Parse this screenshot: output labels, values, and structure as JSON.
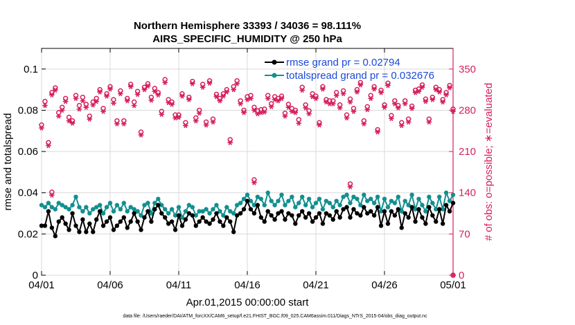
{
  "chart_data": {
    "type": "line",
    "title": "Northern Hemisphere 33393 / 34036 = 98.111%",
    "subtitle": "AIRS_SPECIFIC_HUMIDITY @ 250 hPa",
    "xlabel": "Apr.01,2015 00:00:00 start",
    "ylabel": "rmse and totalspread",
    "y2label": "# of obs: o=possible; ∗=evaluated",
    "footnote": "data file: /Users/raeder/DAI/ATM_forcXX/CAM6_setup/f.e21.FHIST_BGC.f09_025.CAM6assim.011/Diags_NTrS_2015-04/obs_diag_output.nc",
    "xlim": [
      0,
      30
    ],
    "ylim": [
      0,
      0.11
    ],
    "y2lim": [
      0,
      385
    ],
    "x_ticks": [
      0,
      5,
      10,
      15,
      20,
      25,
      30
    ],
    "x_tick_labels": [
      "04/01",
      "04/06",
      "04/11",
      "04/16",
      "04/21",
      "04/26",
      "05/01"
    ],
    "y_ticks": [
      0,
      0.02,
      0.04,
      0.06,
      0.08,
      0.1
    ],
    "y_tick_labels": [
      "0",
      "0.02",
      "0.04",
      "0.06",
      "0.08",
      "0.1"
    ],
    "y2_ticks": [
      0,
      70,
      140,
      210,
      280,
      350
    ],
    "y2_tick_labels": [
      "0",
      "70",
      "140",
      "210",
      "280",
      "350"
    ],
    "legend_position": "top-right",
    "x": [
      0,
      0.25,
      0.5,
      0.75,
      1,
      1.25,
      1.5,
      1.75,
      2,
      2.25,
      2.5,
      2.75,
      3,
      3.25,
      3.5,
      3.75,
      4,
      4.25,
      4.5,
      4.75,
      5,
      5.25,
      5.5,
      5.75,
      6,
      6.25,
      6.5,
      6.75,
      7,
      7.25,
      7.5,
      7.75,
      8,
      8.25,
      8.5,
      8.75,
      9,
      9.25,
      9.5,
      9.75,
      10,
      10.25,
      10.5,
      10.75,
      11,
      11.25,
      11.5,
      11.75,
      12,
      12.25,
      12.5,
      12.75,
      13,
      13.25,
      13.5,
      13.75,
      14,
      14.25,
      14.5,
      14.75,
      15,
      15.25,
      15.5,
      15.75,
      16,
      16.25,
      16.5,
      16.75,
      17,
      17.25,
      17.5,
      17.75,
      18,
      18.25,
      18.5,
      18.75,
      19,
      19.25,
      19.5,
      19.75,
      20,
      20.25,
      20.5,
      20.75,
      21,
      21.25,
      21.5,
      21.75,
      22,
      22.25,
      22.5,
      22.75,
      23,
      23.25,
      23.5,
      23.75,
      24,
      24.25,
      24.5,
      24.75,
      25,
      25.25,
      25.5,
      25.75,
      26,
      26.25,
      26.5,
      26.75,
      27,
      27.25,
      27.5,
      27.75,
      28,
      28.25,
      28.5,
      28.75,
      29,
      29.25,
      29.5,
      29.75,
      30
    ],
    "series": [
      {
        "name": "rmse grand pr = 0.02794",
        "axis": "left",
        "color": "#000000",
        "marker": "dot",
        "values": [
          0.024,
          0.024,
          0.031,
          0.023,
          0.019,
          0.026,
          0.028,
          0.025,
          0.022,
          0.03,
          0.024,
          0.021,
          0.027,
          0.021,
          0.025,
          0.021,
          0.027,
          0.031,
          0.024,
          0.026,
          0.028,
          0.022,
          0.024,
          0.026,
          0.028,
          0.023,
          0.026,
          0.03,
          0.026,
          0.022,
          0.028,
          0.031,
          0.026,
          0.032,
          0.034,
          0.03,
          0.028,
          0.025,
          0.026,
          0.022,
          0.029,
          0.024,
          0.027,
          0.03,
          0.029,
          0.024,
          0.026,
          0.028,
          0.026,
          0.025,
          0.027,
          0.03,
          0.026,
          0.024,
          0.028,
          0.026,
          0.021,
          0.029,
          0.03,
          0.032,
          0.036,
          0.032,
          0.03,
          0.034,
          0.028,
          0.026,
          0.031,
          0.029,
          0.027,
          0.03,
          0.031,
          0.027,
          0.03,
          0.029,
          0.025,
          0.029,
          0.031,
          0.028,
          0.03,
          0.026,
          0.028,
          0.03,
          0.025,
          0.03,
          0.029,
          0.027,
          0.031,
          0.028,
          0.032,
          0.033,
          0.028,
          0.032,
          0.03,
          0.029,
          0.033,
          0.03,
          0.031,
          0.029,
          0.033,
          0.024,
          0.031,
          0.025,
          0.031,
          0.029,
          0.032,
          0.023,
          0.03,
          0.028,
          0.033,
          0.026,
          0.032,
          0.028,
          0.025,
          0.033,
          0.029,
          0.026,
          0.032,
          0.025,
          0.034,
          0.031,
          0.035
        ]
      },
      {
        "name": "totalspread grand pr = 0.032676",
        "axis": "left",
        "color": "#138f8f",
        "marker": "dot",
        "values": [
          0.034,
          0.033,
          0.035,
          0.033,
          0.032,
          0.035,
          0.034,
          0.033,
          0.032,
          0.034,
          0.038,
          0.033,
          0.031,
          0.033,
          0.03,
          0.032,
          0.033,
          0.034,
          0.03,
          0.033,
          0.035,
          0.031,
          0.034,
          0.032,
          0.035,
          0.031,
          0.033,
          0.032,
          0.031,
          0.029,
          0.034,
          0.035,
          0.03,
          0.035,
          0.037,
          0.034,
          0.032,
          0.03,
          0.032,
          0.029,
          0.033,
          0.028,
          0.031,
          0.034,
          0.033,
          0.029,
          0.031,
          0.031,
          0.032,
          0.03,
          0.032,
          0.034,
          0.031,
          0.029,
          0.033,
          0.031,
          0.03,
          0.034,
          0.035,
          0.037,
          0.039,
          0.036,
          0.034,
          0.038,
          0.037,
          0.034,
          0.04,
          0.036,
          0.034,
          0.036,
          0.039,
          0.034,
          0.036,
          0.038,
          0.033,
          0.035,
          0.038,
          0.034,
          0.037,
          0.033,
          0.035,
          0.037,
          0.032,
          0.036,
          0.035,
          0.033,
          0.036,
          0.034,
          0.038,
          0.039,
          0.035,
          0.038,
          0.037,
          0.034,
          0.039,
          0.036,
          0.037,
          0.035,
          0.038,
          0.031,
          0.037,
          0.033,
          0.036,
          0.035,
          0.038,
          0.031,
          0.036,
          0.034,
          0.039,
          0.032,
          0.037,
          0.034,
          0.031,
          0.038,
          0.035,
          0.032,
          0.038,
          0.032,
          0.04,
          0.036,
          0.039
        ]
      },
      {
        "name": "obs possible",
        "axis": "right",
        "color": "#d61f5b",
        "marker": "circle",
        "values": [
          255,
          295,
          225,
          310,
          318,
          276,
          285,
          300,
          268,
          262,
          305,
          288,
          302,
          290,
          270,
          294,
          300,
          315,
          283,
          308,
          320,
          298,
          262,
          313,
          262,
          300,
          324,
          294,
          312,
          243,
          319,
          325,
          302,
          317,
          310,
          278,
          332,
          298,
          294,
          272,
          272,
          308,
          259,
          302,
          329,
          267,
          280,
          324,
          260,
          330,
          265,
          307,
          300,
          308,
          315,
          230,
          320,
          330,
          296,
          280,
          303,
          305,
          285,
          279,
          281,
          282,
          305,
          291,
          303,
          300,
          304,
          275,
          290,
          283,
          280,
          264,
          319,
          289,
          279,
          308,
          304,
          259,
          320,
          298,
          296,
          296,
          310,
          289,
          313,
          272,
          299,
          283,
          315,
          327,
          262,
          286,
          305,
          320,
          247,
          314,
          289,
          326,
          271,
          296,
          288,
          259,
          296,
          265,
          287,
          314,
          316,
          323,
          299,
          265,
          302,
          319,
          315,
          298,
          310,
          322,
          282
        ]
      },
      {
        "name": "obs evaluated",
        "axis": "right",
        "color": "#d61f5b",
        "marker": "star",
        "values": [
          250,
          288,
          220,
          306,
          314,
          270,
          280,
          295,
          262,
          258,
          300,
          282,
          296,
          285,
          265,
          289,
          295,
          311,
          278,
          304,
          316,
          292,
          257,
          308,
          257,
          296,
          320,
          288,
          307,
          238,
          315,
          321,
          297,
          312,
          306,
          273,
          327,
          293,
          290,
          267,
          268,
          304,
          254,
          298,
          325,
          262,
          275,
          319,
          255,
          326,
          260,
          303,
          296,
          304,
          311,
          225,
          315,
          325,
          291,
          276,
          298,
          300,
          280,
          274,
          276,
          277,
          300,
          286,
          298,
          296,
          300,
          270,
          285,
          278,
          276,
          258,
          314,
          284,
          274,
          303,
          300,
          255,
          316,
          294,
          291,
          291,
          305,
          284,
          308,
          267,
          294,
          278,
          311,
          323,
          257,
          281,
          300,
          316,
          243,
          310,
          285,
          322,
          266,
          291,
          284,
          254,
          291,
          260,
          283,
          310,
          312,
          319,
          295,
          260,
          298,
          315,
          311,
          294,
          306,
          318,
          278
        ]
      }
    ],
    "annotations": [
      {
        "x": 0.75,
        "y2": 141,
        "marker": "circle"
      },
      {
        "x": 0.75,
        "y2": 136,
        "marker": "star"
      },
      {
        "x": 15.5,
        "y2": 162,
        "marker": "circle"
      },
      {
        "x": 15.5,
        "y2": 157,
        "marker": "star"
      },
      {
        "x": 22.5,
        "y2": 155,
        "marker": "circle"
      },
      {
        "x": 22.5,
        "y2": 150,
        "marker": "star"
      },
      {
        "x": 30,
        "y2": 0,
        "marker": "circle"
      },
      {
        "x": 30,
        "y2": 0,
        "marker": "star"
      }
    ]
  },
  "colors": {
    "rmse": "#000000",
    "spread": "#138f8f",
    "obs": "#d61f5b",
    "legend_text": "#1a49d8"
  }
}
